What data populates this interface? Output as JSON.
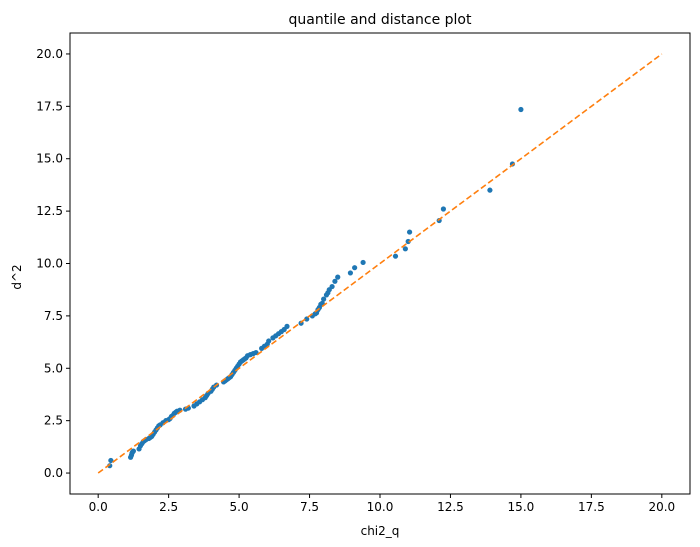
{
  "chart_data": {
    "type": "scatter",
    "title": "quantile and distance plot",
    "xlabel": "chi2_q",
    "ylabel": "d^2",
    "xlim": [
      -1.0,
      21.0
    ],
    "ylim": [
      -1.0,
      21.0
    ],
    "xticks": [
      0.0,
      2.5,
      5.0,
      7.5,
      10.0,
      12.5,
      15.0,
      17.5,
      20.0
    ],
    "xtick_labels": [
      "0.0",
      "2.5",
      "5.0",
      "7.5",
      "10.0",
      "12.5",
      "15.0",
      "17.5",
      "20.0"
    ],
    "yticks": [
      0.0,
      2.5,
      5.0,
      7.5,
      10.0,
      12.5,
      15.0,
      17.5,
      20.0
    ],
    "ytick_labels": [
      "0.0",
      "2.5",
      "5.0",
      "7.5",
      "10.0",
      "12.5",
      "15.0",
      "17.5",
      "20.0"
    ],
    "grid": false,
    "colors": {
      "points": "#1f77b4",
      "reference_line": "#ff7f0e"
    },
    "reference_line": {
      "style": "dashed",
      "x": [
        0.0,
        20.0
      ],
      "y": [
        0.0,
        20.0
      ]
    },
    "points": {
      "x": [
        0.41,
        0.45,
        1.15,
        1.18,
        1.2,
        1.22,
        1.25,
        1.45,
        1.5,
        1.55,
        1.6,
        1.65,
        1.7,
        1.8,
        1.85,
        1.9,
        1.95,
        2.0,
        2.05,
        2.1,
        2.15,
        2.2,
        2.3,
        2.4,
        2.5,
        2.55,
        2.6,
        2.65,
        2.7,
        2.75,
        2.8,
        2.9,
        3.1,
        3.2,
        3.4,
        3.5,
        3.6,
        3.7,
        3.8,
        3.85,
        3.9,
        4.0,
        4.05,
        4.1,
        4.2,
        4.45,
        4.5,
        4.55,
        4.6,
        4.65,
        4.7,
        4.75,
        4.8,
        4.85,
        4.9,
        4.95,
        5.0,
        5.05,
        5.1,
        5.15,
        5.2,
        5.25,
        5.3,
        5.4,
        5.5,
        5.6,
        5.8,
        5.9,
        6.0,
        6.05,
        6.2,
        6.3,
        6.4,
        6.5,
        6.6,
        6.7,
        7.2,
        7.4,
        7.6,
        7.7,
        7.75,
        7.8,
        7.85,
        7.9,
        7.95,
        8.0,
        8.1,
        8.15,
        8.2,
        8.3,
        8.4,
        8.5,
        8.95,
        9.1,
        9.4,
        10.55,
        10.9,
        11.0,
        11.05,
        12.1,
        12.25,
        13.9,
        14.7,
        15.0
      ],
      "y": [
        0.35,
        0.6,
        0.75,
        0.85,
        0.95,
        1.0,
        1.05,
        1.15,
        1.3,
        1.4,
        1.5,
        1.55,
        1.6,
        1.65,
        1.7,
        1.75,
        1.85,
        1.95,
        2.05,
        2.15,
        2.25,
        2.3,
        2.4,
        2.5,
        2.55,
        2.6,
        2.7,
        2.75,
        2.85,
        2.9,
        2.95,
        3.0,
        3.05,
        3.1,
        3.2,
        3.3,
        3.4,
        3.5,
        3.6,
        3.7,
        3.8,
        3.9,
        4.0,
        4.1,
        4.2,
        4.35,
        4.4,
        4.45,
        4.5,
        4.55,
        4.6,
        4.7,
        4.8,
        4.9,
        5.0,
        5.1,
        5.2,
        5.3,
        5.35,
        5.4,
        5.45,
        5.5,
        5.6,
        5.65,
        5.7,
        5.75,
        5.95,
        6.05,
        6.15,
        6.3,
        6.45,
        6.55,
        6.65,
        6.75,
        6.85,
        7.0,
        7.15,
        7.35,
        7.5,
        7.6,
        7.65,
        7.8,
        7.9,
        8.05,
        8.1,
        8.3,
        8.5,
        8.6,
        8.75,
        8.9,
        9.15,
        9.35,
        9.55,
        9.8,
        10.05,
        10.35,
        10.7,
        11.05,
        11.5,
        12.05,
        12.6,
        13.5,
        14.75,
        17.35
      ]
    }
  }
}
